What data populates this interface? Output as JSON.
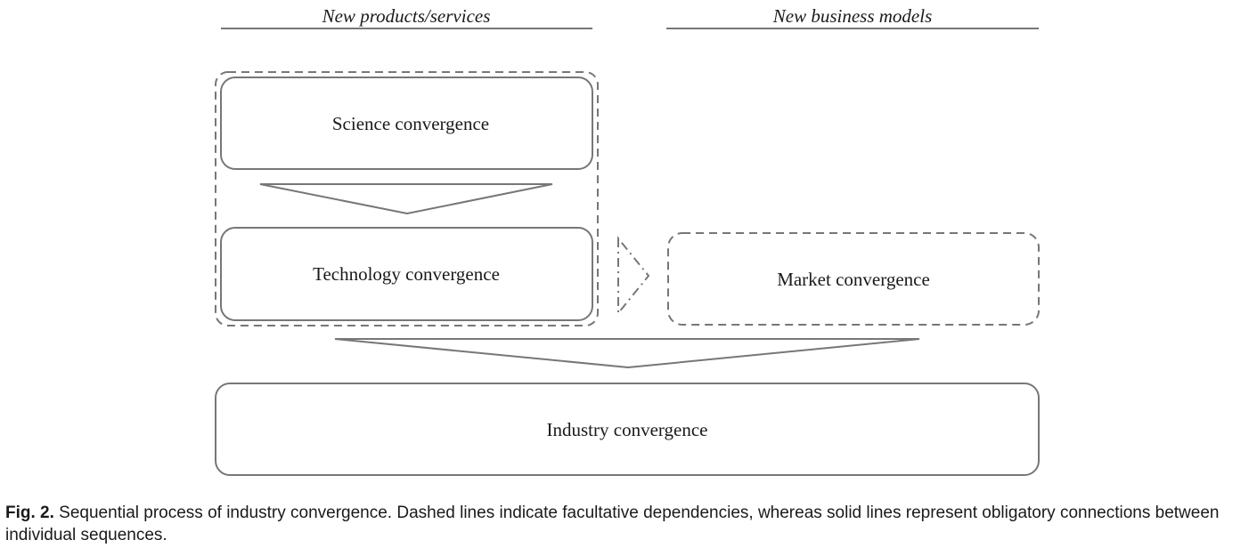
{
  "headers": {
    "left": "New products/services",
    "right": "New business models"
  },
  "boxes": {
    "science": "Science convergence",
    "technology": "Technology convergence",
    "market": "Market convergence",
    "industry": "Industry convergence"
  },
  "caption": {
    "label": "Fig. 2.",
    "text": " Sequential process of industry convergence. Dashed lines indicate facultative dependencies, whereas solid lines represent obligatory connections between individual sequences."
  },
  "colors": {
    "stroke": "#777777",
    "text": "#1a1a1a"
  }
}
